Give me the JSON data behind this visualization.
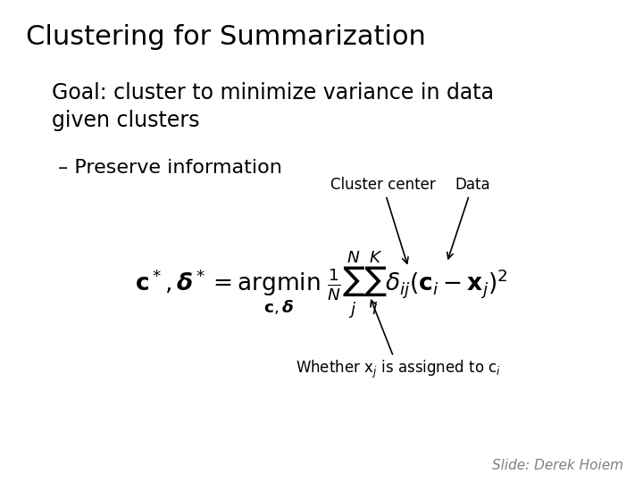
{
  "title": "Clustering for Summarization",
  "goal_text": "Goal: cluster to minimize variance in data\ngiven clusters",
  "bullet_text": "– Preserve information",
  "formula": "\\mathbf{c}^*, \\boldsymbol{\\delta}^* = \\underset{\\mathbf{c}, \\boldsymbol{\\delta}}{\\text{argmin}}\\; \\frac{1}{N} \\sum_{j}^{N} \\sum_{i}^{K} \\delta_{ij} \\left( \\mathbf{c}_i - \\mathbf{x}_j \\right)^2",
  "label_cluster_center": "Cluster center",
  "label_data": "Data",
  "label_delta": "Whether x$_j$ is assigned to c$_i$",
  "credit": "Slide: Derek Hoiem",
  "bg_color": "#ffffff",
  "text_color": "#000000",
  "title_fontsize": 22,
  "goal_fontsize": 17,
  "bullet_fontsize": 16,
  "formula_fontsize": 16,
  "annotation_fontsize": 12,
  "credit_fontsize": 11
}
